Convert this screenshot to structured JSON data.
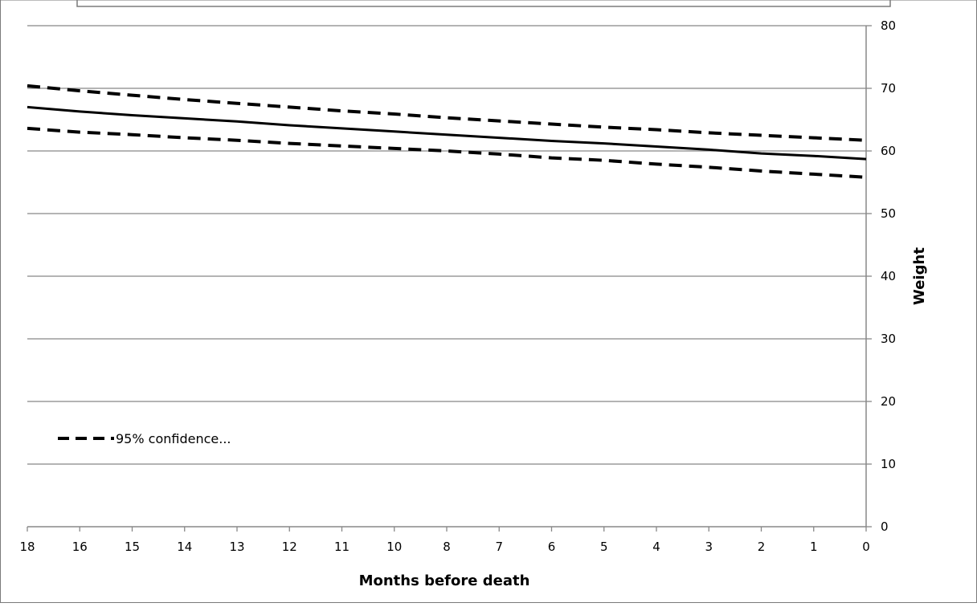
{
  "chart_data": {
    "type": "line",
    "title": "",
    "xlabel": "Months before death",
    "ylabel": "Weight",
    "categories": [
      "18",
      "16",
      "15",
      "14",
      "13",
      "12",
      "11",
      "10",
      "8",
      "7",
      "6",
      "5",
      "4",
      "3",
      "2",
      "1",
      "0"
    ],
    "ylim": [
      0,
      80
    ],
    "yticks": [
      "0",
      "10",
      "20",
      "30",
      "40",
      "50",
      "60",
      "70",
      "80"
    ],
    "y_axis_side": "right",
    "grid": true,
    "legend": {
      "position": "bottom-left",
      "entries": [
        "95% confidence..."
      ]
    },
    "series": [
      {
        "name": "",
        "style": "solid",
        "values": [
          67.0,
          66.3,
          65.7,
          65.2,
          64.7,
          64.1,
          63.6,
          63.1,
          62.6,
          62.1,
          61.6,
          61.2,
          60.7,
          60.2,
          59.6,
          59.2,
          58.7
        ]
      },
      {
        "name": "95% confidence...",
        "style": "dashed",
        "values": [
          70.4,
          69.6,
          68.9,
          68.2,
          67.6,
          67.0,
          66.4,
          65.9,
          65.3,
          64.8,
          64.3,
          63.8,
          63.4,
          62.9,
          62.5,
          62.1,
          61.7
        ]
      },
      {
        "name": "",
        "style": "dashed",
        "values": [
          63.6,
          63.0,
          62.6,
          62.1,
          61.7,
          61.2,
          60.8,
          60.4,
          60.0,
          59.5,
          58.9,
          58.5,
          57.9,
          57.4,
          56.8,
          56.3,
          55.8
        ]
      }
    ]
  },
  "colors": {
    "line": "#000000",
    "grid": "#888888",
    "axis": "#888888"
  }
}
